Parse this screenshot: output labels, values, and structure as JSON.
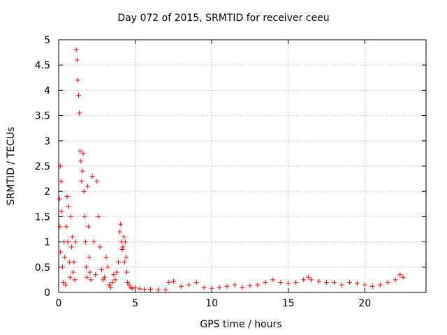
{
  "chart_data": {
    "type": "scatter",
    "title": "Day 072 of 2015, SRMTID for receiver ceeu",
    "xlabel": "GPS time / hours",
    "ylabel": "SRMTID / TECUs",
    "xlim": [
      0,
      24
    ],
    "ylim": [
      0,
      5
    ],
    "xticks": [
      0,
      5,
      10,
      15,
      20
    ],
    "yticks": [
      0,
      0.5,
      1,
      1.5,
      2,
      2.5,
      3,
      3.5,
      4,
      4.5,
      5
    ],
    "xtick_labels": [
      "0",
      "5",
      "10",
      "15",
      "20"
    ],
    "ytick_labels": [
      "0",
      "0.5",
      "1",
      "1.5",
      "2",
      "2.5",
      "3",
      "3.5",
      "4",
      "4.5",
      "5"
    ],
    "grid": true,
    "marker": "+",
    "color": "#ff0000",
    "series": [
      {
        "x": [
          0.05,
          0.08,
          0.1,
          0.12,
          0.15,
          0.2,
          0.25,
          0.3,
          0.35,
          0.4,
          0.45,
          0.5,
          0.55,
          0.6,
          0.65,
          0.7,
          0.75,
          0.8,
          0.85,
          0.9,
          0.95,
          1.0,
          1.05,
          1.1,
          1.15,
          1.2,
          1.25,
          1.3,
          1.35,
          1.4,
          1.45,
          1.5,
          1.55,
          1.6,
          1.65,
          1.7,
          1.75,
          1.8,
          1.85,
          1.9,
          1.95,
          2.0,
          2.05,
          2.1,
          2.2,
          2.3,
          2.4,
          2.5,
          2.6,
          2.7,
          2.8,
          2.9,
          3.0,
          3.1,
          3.2,
          3.3,
          3.4,
          3.5,
          3.6,
          3.7,
          3.8,
          3.9,
          4.0,
          4.05,
          4.1,
          4.15,
          4.2,
          4.25,
          4.3,
          4.35,
          4.4,
          4.45,
          4.5,
          4.6,
          4.7,
          4.8,
          5.0,
          5.3,
          5.6,
          6.0,
          6.5,
          7.0,
          7.2,
          7.5,
          8.0,
          8.5,
          9.0,
          9.5,
          10.0,
          10.5,
          11.0,
          11.5,
          12.0,
          12.5,
          13.0,
          13.5,
          14.0,
          14.5,
          15.0,
          15.5,
          16.0,
          16.3,
          16.5,
          17.0,
          17.5,
          18.0,
          18.5,
          19.0,
          19.5,
          20.0,
          20.5,
          21.0,
          21.5,
          22.0,
          22.3,
          22.5
        ],
        "y": [
          1.85,
          1.3,
          2.5,
          0.8,
          2.2,
          1.6,
          0.5,
          0.2,
          1.0,
          0.7,
          0.15,
          1.3,
          1.9,
          1.0,
          1.7,
          0.6,
          0.3,
          1.5,
          0.9,
          1.1,
          0.4,
          0.6,
          0.25,
          1.0,
          4.8,
          4.6,
          4.2,
          3.9,
          3.55,
          2.8,
          2.6,
          2.2,
          2.4,
          2.75,
          2.0,
          1.5,
          1.0,
          0.5,
          0.3,
          2.1,
          1.3,
          0.7,
          0.4,
          0.25,
          2.3,
          1.0,
          0.35,
          2.2,
          1.5,
          0.9,
          0.45,
          0.25,
          0.3,
          0.7,
          0.5,
          0.15,
          0.1,
          0.2,
          0.35,
          0.25,
          0.4,
          0.6,
          1.2,
          1.35,
          1.0,
          0.85,
          0.9,
          1.1,
          0.6,
          1.0,
          0.7,
          0.4,
          0.2,
          0.15,
          0.1,
          0.08,
          0.1,
          0.07,
          0.06,
          0.06,
          0.05,
          0.05,
          0.2,
          0.22,
          0.12,
          0.15,
          0.2,
          0.1,
          0.08,
          0.1,
          0.12,
          0.15,
          0.1,
          0.13,
          0.15,
          0.2,
          0.25,
          0.2,
          0.18,
          0.2,
          0.25,
          0.3,
          0.25,
          0.22,
          0.2,
          0.2,
          0.15,
          0.2,
          0.18,
          0.15,
          0.12,
          0.15,
          0.2,
          0.25,
          0.35,
          0.3
        ]
      }
    ]
  }
}
